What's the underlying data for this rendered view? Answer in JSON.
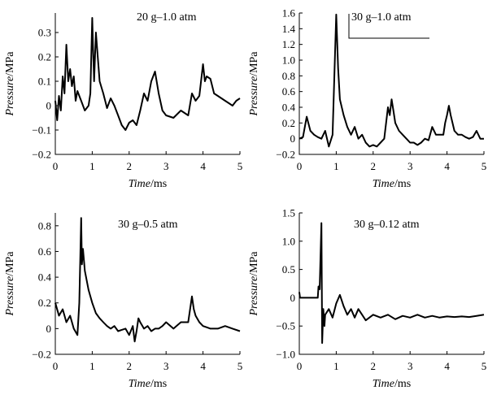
{
  "chart_data": [
    {
      "type": "line",
      "annotation": "20 g–1.0 atm",
      "xlabel_italic": "Time",
      "xlabel_unit": "/ms",
      "ylabel_italic": "Pressure",
      "ylabel_unit": "/MPa",
      "xlim": [
        0,
        5
      ],
      "ylim": [
        -0.2,
        0.38
      ],
      "xticks": [
        "0",
        "1",
        "2",
        "3",
        "4",
        "5"
      ],
      "xtick_values": [
        0,
        1,
        2,
        3,
        4,
        5
      ],
      "yticks": [
        "−0.2",
        "−0.1",
        "0",
        "0.1",
        "0.2",
        "0.3"
      ],
      "ytick_values": [
        -0.2,
        -0.1,
        0,
        0.1,
        0.2,
        0.3
      ],
      "series": [
        {
          "x": [
            0,
            0.05,
            0.1,
            0.15,
            0.2,
            0.25,
            0.3,
            0.35,
            0.4,
            0.45,
            0.5,
            0.55,
            0.6,
            0.7,
            0.8,
            0.9,
            0.95,
            1.0,
            1.02,
            1.05,
            1.1,
            1.15,
            1.2,
            1.3,
            1.4,
            1.5,
            1.6,
            1.7,
            1.8,
            1.9,
            2.0,
            2.1,
            2.2,
            2.3,
            2.4,
            2.5,
            2.6,
            2.7,
            2.8,
            2.9,
            3.0,
            3.2,
            3.4,
            3.6,
            3.7,
            3.8,
            3.9,
            4.0,
            4.05,
            4.1,
            4.2,
            4.3,
            4.4,
            4.5,
            4.6,
            4.7,
            4.8,
            4.9,
            5.0
          ],
          "y": [
            0.02,
            -0.06,
            0.04,
            -0.02,
            0.12,
            0.05,
            0.25,
            0.1,
            0.15,
            0.08,
            0.12,
            0.02,
            0.06,
            0.02,
            -0.02,
            0.0,
            0.05,
            0.36,
            0.25,
            0.1,
            0.3,
            0.2,
            0.1,
            0.05,
            -0.01,
            0.03,
            0.0,
            -0.04,
            -0.08,
            -0.1,
            -0.07,
            -0.06,
            -0.08,
            -0.02,
            0.05,
            0.02,
            0.1,
            0.14,
            0.05,
            -0.02,
            -0.04,
            -0.05,
            -0.02,
            -0.04,
            0.05,
            0.02,
            0.04,
            0.17,
            0.1,
            0.12,
            0.11,
            0.05,
            0.04,
            0.03,
            0.02,
            0.01,
            0.0,
            0.02,
            0.03
          ]
        }
      ]
    },
    {
      "type": "line",
      "annotation": "30 g–1.0 atm",
      "xlabel_italic": "Time",
      "xlabel_unit": "/ms",
      "ylabel_italic": "Pressure",
      "ylabel_unit": "/MPa",
      "xlim": [
        0,
        5
      ],
      "ylim": [
        -0.2,
        1.6
      ],
      "xticks": [
        "0",
        "1",
        "2",
        "3",
        "4",
        "5"
      ],
      "xtick_values": [
        0,
        1,
        2,
        3,
        4,
        5
      ],
      "yticks": [
        "−0.2",
        "0",
        "0.2",
        "0.4",
        "0.6",
        "0.8",
        "1.0",
        "1.2",
        "1.4",
        "1.6"
      ],
      "ytick_values": [
        -0.2,
        0,
        0.2,
        0.4,
        0.6,
        0.8,
        1.0,
        1.2,
        1.4,
        1.6
      ],
      "series": [
        {
          "x": [
            0,
            0.1,
            0.2,
            0.3,
            0.4,
            0.5,
            0.6,
            0.7,
            0.8,
            0.9,
            0.95,
            1.0,
            1.05,
            1.1,
            1.2,
            1.3,
            1.4,
            1.5,
            1.6,
            1.7,
            1.8,
            1.9,
            2.0,
            2.1,
            2.2,
            2.3,
            2.4,
            2.45,
            2.5,
            2.55,
            2.6,
            2.7,
            2.8,
            2.9,
            3.0,
            3.1,
            3.2,
            3.3,
            3.4,
            3.5,
            3.6,
            3.7,
            3.8,
            3.9,
            3.95,
            4.0,
            4.05,
            4.1,
            4.2,
            4.3,
            4.4,
            4.5,
            4.6,
            4.7,
            4.8,
            4.9,
            5.0
          ],
          "y": [
            0.0,
            0.02,
            0.28,
            0.1,
            0.05,
            0.02,
            0.0,
            0.1,
            -0.1,
            0.05,
            0.8,
            1.58,
            0.9,
            0.5,
            0.3,
            0.15,
            0.05,
            0.15,
            0.0,
            0.05,
            -0.05,
            -0.1,
            -0.08,
            -0.1,
            -0.05,
            0.0,
            0.4,
            0.3,
            0.5,
            0.35,
            0.2,
            0.1,
            0.05,
            0.0,
            -0.05,
            -0.05,
            -0.08,
            -0.05,
            0.0,
            -0.02,
            0.15,
            0.05,
            0.05,
            0.05,
            0.2,
            0.3,
            0.42,
            0.3,
            0.1,
            0.05,
            0.05,
            0.02,
            0.0,
            0.02,
            0.1,
            0.0,
            0.0
          ]
        }
      ],
      "scale_bar": true
    },
    {
      "type": "line",
      "annotation": "30 g–0.5 atm",
      "xlabel_italic": "Time",
      "xlabel_unit": "/ms",
      "ylabel_italic": "Pressure",
      "ylabel_unit": "/MPa",
      "xlim": [
        0,
        5
      ],
      "ylim": [
        -0.2,
        0.9
      ],
      "xticks": [
        "0",
        "1",
        "2",
        "3",
        "4",
        "5"
      ],
      "xtick_values": [
        0,
        1,
        2,
        3,
        4,
        5
      ],
      "yticks": [
        "−0.2",
        "0",
        "0.2",
        "0.4",
        "0.6",
        "0.8"
      ],
      "ytick_values": [
        -0.2,
        0,
        0.2,
        0.4,
        0.6,
        0.8
      ],
      "series": [
        {
          "x": [
            0,
            0.1,
            0.2,
            0.3,
            0.4,
            0.5,
            0.6,
            0.65,
            0.7,
            0.72,
            0.75,
            0.8,
            0.9,
            1.0,
            1.1,
            1.2,
            1.3,
            1.4,
            1.5,
            1.6,
            1.7,
            1.8,
            1.9,
            2.0,
            2.1,
            2.15,
            2.2,
            2.25,
            2.3,
            2.4,
            2.5,
            2.6,
            2.7,
            2.8,
            2.9,
            3.0,
            3.2,
            3.4,
            3.6,
            3.7,
            3.75,
            3.8,
            3.9,
            4.0,
            4.2,
            4.4,
            4.6,
            4.8,
            5.0
          ],
          "y": [
            0.2,
            0.1,
            0.15,
            0.05,
            0.1,
            0.0,
            -0.05,
            0.2,
            0.86,
            0.5,
            0.62,
            0.45,
            0.3,
            0.2,
            0.12,
            0.08,
            0.05,
            0.02,
            0.0,
            0.02,
            -0.02,
            -0.01,
            0.0,
            -0.05,
            0.02,
            -0.1,
            -0.02,
            0.08,
            0.05,
            0.0,
            0.02,
            -0.02,
            0.0,
            0.0,
            0.02,
            0.05,
            0.0,
            0.05,
            0.05,
            0.25,
            0.15,
            0.1,
            0.05,
            0.02,
            0.0,
            0.0,
            0.02,
            0.0,
            -0.02
          ]
        }
      ]
    },
    {
      "type": "line",
      "annotation": "30 g–0.12 atm",
      "xlabel_italic": "Time",
      "xlabel_unit": "/ms",
      "ylabel_italic": "Pressure",
      "ylabel_unit": "/MPa",
      "xlim": [
        0,
        5
      ],
      "ylim": [
        -1.0,
        1.5
      ],
      "xticks": [
        "0",
        "1",
        "2",
        "3",
        "4",
        "5"
      ],
      "xtick_values": [
        0,
        1,
        2,
        3,
        4,
        5
      ],
      "yticks": [
        "−1.0",
        "−0.5",
        "0",
        "0.5",
        "1.0",
        "1.5"
      ],
      "ytick_values": [
        -1.0,
        -0.5,
        0,
        0.5,
        1.0,
        1.5
      ],
      "series": [
        {
          "x": [
            0,
            0.02,
            0.05,
            0.1,
            0.2,
            0.3,
            0.4,
            0.5,
            0.52,
            0.55,
            0.6,
            0.62,
            0.65,
            0.68,
            0.7,
            0.8,
            0.9,
            1.0,
            1.1,
            1.2,
            1.3,
            1.4,
            1.5,
            1.6,
            1.8,
            2.0,
            2.2,
            2.4,
            2.6,
            2.8,
            3.0,
            3.2,
            3.4,
            3.6,
            3.8,
            4.0,
            4.2,
            4.4,
            4.6,
            4.8,
            5.0
          ],
          "y": [
            0.1,
            0.0,
            0.0,
            0.0,
            0.0,
            0.0,
            0.0,
            0.0,
            0.2,
            0.15,
            1.32,
            -0.8,
            -0.2,
            -0.5,
            -0.3,
            -0.2,
            -0.35,
            -0.1,
            0.05,
            -0.15,
            -0.3,
            -0.2,
            -0.35,
            -0.2,
            -0.4,
            -0.3,
            -0.35,
            -0.3,
            -0.38,
            -0.32,
            -0.35,
            -0.3,
            -0.35,
            -0.32,
            -0.35,
            -0.33,
            -0.34,
            -0.33,
            -0.34,
            -0.32,
            -0.3
          ]
        }
      ]
    }
  ]
}
